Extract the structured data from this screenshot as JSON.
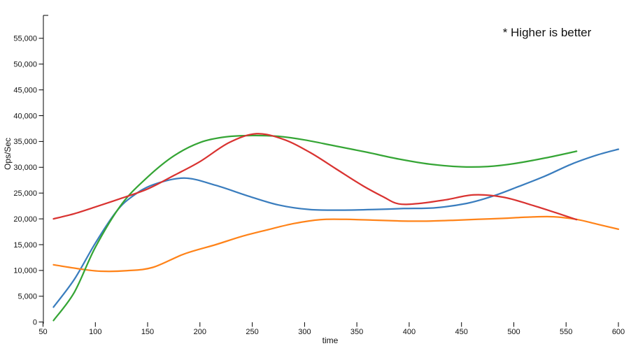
{
  "annotation": {
    "text": "* Higher is better"
  },
  "axes": {
    "x": {
      "label": "time",
      "min": 50,
      "max": 600,
      "tick_step": 50,
      "ticks": [
        50,
        100,
        150,
        200,
        250,
        300,
        350,
        400,
        450,
        500,
        550,
        600
      ]
    },
    "y": {
      "label": "Ops/Sec",
      "min": 0,
      "max": 55000,
      "tick_step": 5000,
      "ticks": [
        0,
        5000,
        10000,
        15000,
        20000,
        25000,
        30000,
        35000,
        40000,
        45000,
        50000,
        55000
      ]
    }
  },
  "chart_data": {
    "type": "line",
    "title": "",
    "xlabel": "time",
    "ylabel": "Ops/Sec",
    "xlim": [
      50,
      600
    ],
    "ylim": [
      0,
      55000
    ],
    "grid": false,
    "legend": "none",
    "annotations": [
      "* Higher is better"
    ],
    "series": [
      {
        "name": "blue",
        "color": "#3a7dbe",
        "points": [
          [
            60,
            2900
          ],
          [
            80,
            8300
          ],
          [
            100,
            15300
          ],
          [
            120,
            21400
          ],
          [
            135,
            24300
          ],
          [
            155,
            26600
          ],
          [
            185,
            27900
          ],
          [
            215,
            26500
          ],
          [
            245,
            24500
          ],
          [
            275,
            22700
          ],
          [
            305,
            21800
          ],
          [
            335,
            21700
          ],
          [
            365,
            21800
          ],
          [
            395,
            22000
          ],
          [
            425,
            22150
          ],
          [
            455,
            23000
          ],
          [
            480,
            24400
          ],
          [
            505,
            26300
          ],
          [
            530,
            28300
          ],
          [
            555,
            30600
          ],
          [
            580,
            32400
          ],
          [
            600,
            33500
          ]
        ]
      },
      {
        "name": "orange",
        "color": "#ff8319",
        "points": [
          [
            60,
            11100
          ],
          [
            85,
            10300
          ],
          [
            105,
            9850
          ],
          [
            130,
            9950
          ],
          [
            155,
            10600
          ],
          [
            185,
            13200
          ],
          [
            215,
            15000
          ],
          [
            240,
            16600
          ],
          [
            265,
            17900
          ],
          [
            290,
            19100
          ],
          [
            315,
            19850
          ],
          [
            340,
            19900
          ],
          [
            365,
            19750
          ],
          [
            390,
            19600
          ],
          [
            415,
            19550
          ],
          [
            440,
            19700
          ],
          [
            465,
            19900
          ],
          [
            490,
            20100
          ],
          [
            515,
            20350
          ],
          [
            538,
            20400
          ],
          [
            560,
            19900
          ],
          [
            580,
            18950
          ],
          [
            600,
            18000
          ]
        ]
      },
      {
        "name": "green",
        "color": "#35a535",
        "points": [
          [
            60,
            300
          ],
          [
            80,
            5800
          ],
          [
            100,
            14500
          ],
          [
            125,
            22800
          ],
          [
            150,
            28100
          ],
          [
            175,
            32200
          ],
          [
            200,
            34800
          ],
          [
            225,
            35900
          ],
          [
            250,
            36150
          ],
          [
            275,
            36000
          ],
          [
            300,
            35300
          ],
          [
            330,
            34100
          ],
          [
            360,
            32900
          ],
          [
            390,
            31600
          ],
          [
            420,
            30600
          ],
          [
            450,
            30100
          ],
          [
            475,
            30150
          ],
          [
            500,
            30700
          ],
          [
            530,
            31800
          ],
          [
            560,
            33100
          ]
        ]
      },
      {
        "name": "red",
        "color": "#d93331",
        "points": [
          [
            60,
            20000
          ],
          [
            80,
            21000
          ],
          [
            100,
            22300
          ],
          [
            125,
            24000
          ],
          [
            150,
            25800
          ],
          [
            175,
            28400
          ],
          [
            200,
            31100
          ],
          [
            228,
            34800
          ],
          [
            254,
            36500
          ],
          [
            280,
            35400
          ],
          [
            305,
            32900
          ],
          [
            330,
            29700
          ],
          [
            355,
            26500
          ],
          [
            375,
            24300
          ],
          [
            390,
            22900
          ],
          [
            410,
            23000
          ],
          [
            435,
            23700
          ],
          [
            462,
            24650
          ],
          [
            490,
            24200
          ],
          [
            515,
            22800
          ],
          [
            540,
            21200
          ],
          [
            560,
            19850
          ]
        ]
      }
    ]
  }
}
